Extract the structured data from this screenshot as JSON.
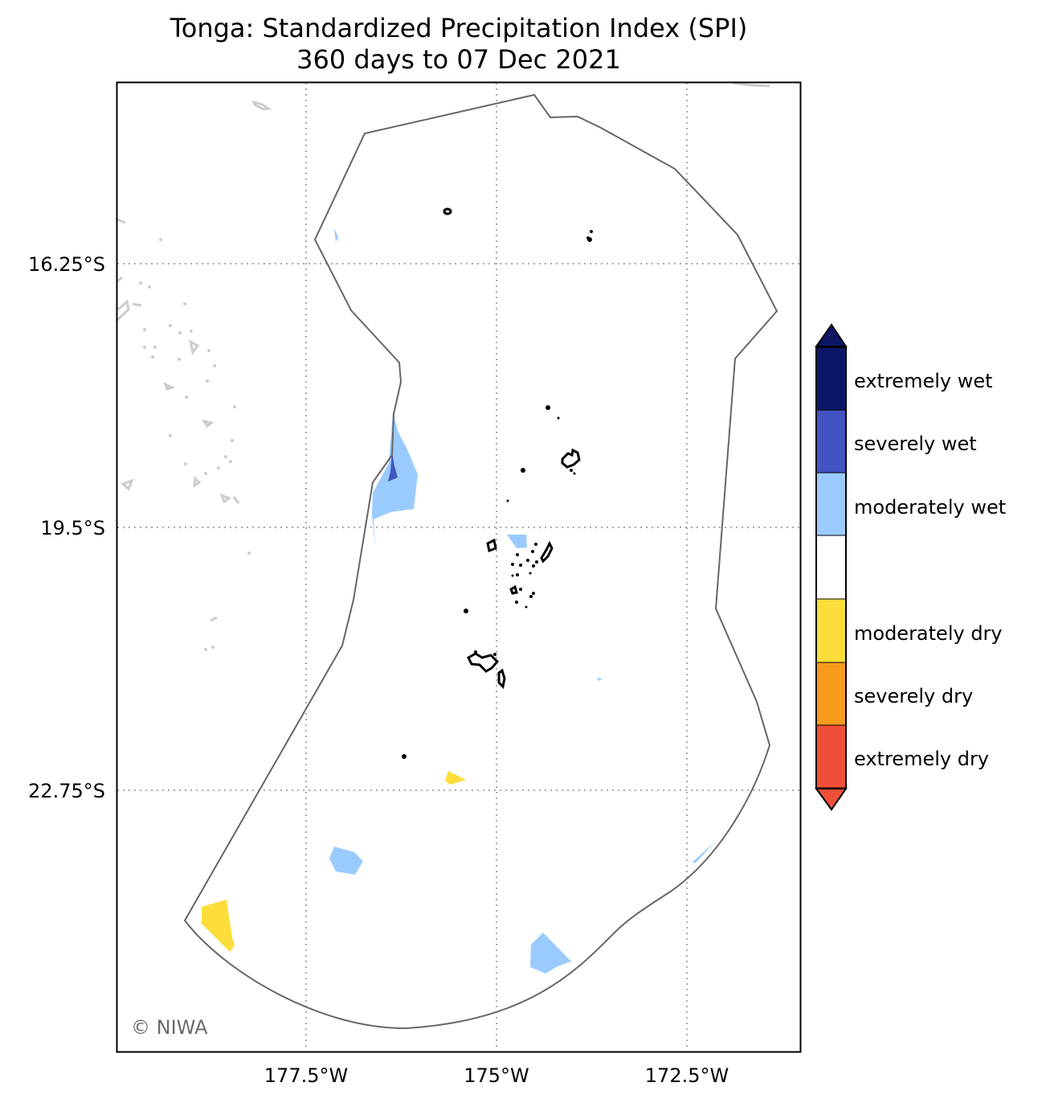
{
  "title": "Tonga: Standardized Precipitation Index (SPI)",
  "subtitle": "360 days to 07 Dec 2021",
  "lat_ticks": [
    "16.25°S",
    "19.5°S",
    "22.75°S"
  ],
  "lon_ticks": [
    "177.5°W",
    "175°W",
    "172.5°W"
  ],
  "credit": "© NIWA",
  "colorbar": {
    "items": [
      {
        "label": "extremely wet",
        "color": "#0b1766"
      },
      {
        "label": "severely wet",
        "color": "#4453c2"
      },
      {
        "label": "moderately wet",
        "color": "#9acbff"
      },
      {
        "label": "",
        "color": "#ffffff"
      },
      {
        "label": "moderately dry",
        "color": "#fcdd3a"
      },
      {
        "label": "severely dry",
        "color": "#f79b1f"
      },
      {
        "label": "extremely dry",
        "color": "#ef4f36"
      }
    ]
  },
  "colors": {
    "eez_boundary": "#666666",
    "gridline": "#aaaaaa",
    "land_tonga": "#000000",
    "land_neighbours": "#cccccc"
  }
}
